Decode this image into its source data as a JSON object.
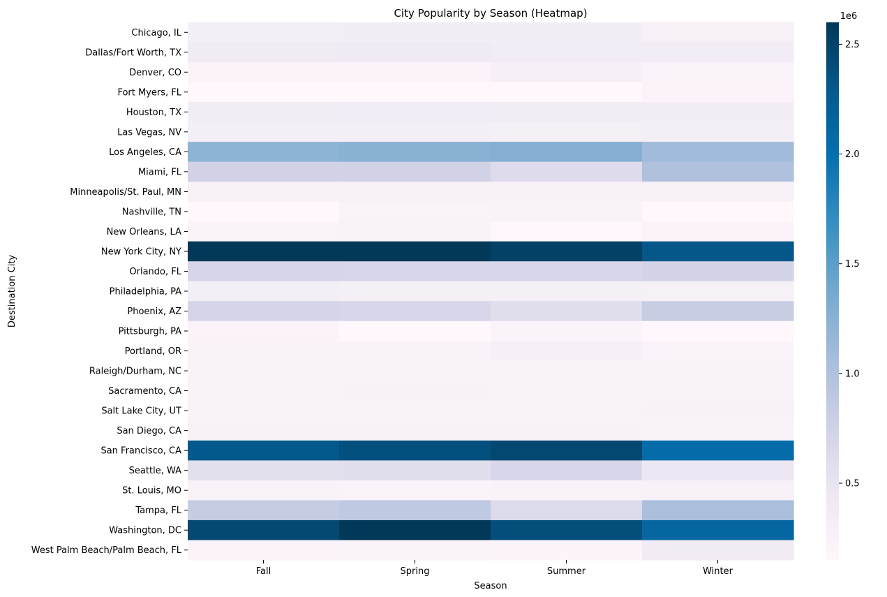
{
  "chart_data": {
    "type": "heatmap",
    "title": "City Popularity by Season (Heatmap)",
    "xlabel": "Season",
    "ylabel": "Destination City",
    "x_categories": [
      "Fall",
      "Spring",
      "Summer",
      "Winter"
    ],
    "y_categories": [
      "Chicago, IL",
      "Dallas/Fort Worth, TX",
      "Denver, CO",
      "Fort Myers, FL",
      "Houston, TX",
      "Las Vegas, NV",
      "Los Angeles, CA ",
      "Miami, FL ",
      "Minneapolis/St. Paul, MN",
      "Nashville, TN",
      "New Orleans, LA",
      "New York City, NY ",
      "Orlando, FL",
      "Philadelphia, PA",
      "Phoenix, AZ",
      "Pittsburgh, PA",
      "Portland, OR",
      "Raleigh/Durham, NC",
      "Sacramento, CA",
      "Salt Lake City, UT",
      "San Diego, CA",
      "San Francisco, CA ",
      "Seattle, WA",
      "St. Louis, MO",
      "Tampa, FL ",
      "Washington, DC ",
      "West Palm Beach/Palm Beach, FL"
    ],
    "values": [
      [
        330000,
        350000,
        340000,
        280000
      ],
      [
        380000,
        400000,
        370000,
        370000
      ],
      [
        220000,
        220000,
        300000,
        230000
      ],
      [
        140000,
        140000,
        140000,
        220000
      ],
      [
        360000,
        370000,
        360000,
        350000
      ],
      [
        320000,
        320000,
        310000,
        320000
      ],
      [
        1220000,
        1250000,
        1280000,
        1100000
      ],
      [
        750000,
        750000,
        620000,
        1000000
      ],
      [
        260000,
        260000,
        260000,
        260000
      ],
      [
        150000,
        230000,
        240000,
        140000
      ],
      [
        230000,
        240000,
        150000,
        220000
      ],
      [
        2600000,
        2600000,
        2520000,
        2320000
      ],
      [
        690000,
        680000,
        680000,
        720000
      ],
      [
        320000,
        310000,
        310000,
        290000
      ],
      [
        710000,
        680000,
        590000,
        820000
      ],
      [
        220000,
        150000,
        230000,
        140000
      ],
      [
        240000,
        240000,
        300000,
        230000
      ],
      [
        240000,
        250000,
        250000,
        240000
      ],
      [
        250000,
        270000,
        250000,
        250000
      ],
      [
        240000,
        240000,
        240000,
        270000
      ],
      [
        260000,
        260000,
        270000,
        240000
      ],
      [
        2300000,
        2380000,
        2460000,
        2050000
      ],
      [
        560000,
        580000,
        680000,
        460000
      ],
      [
        250000,
        230000,
        250000,
        260000
      ],
      [
        840000,
        890000,
        630000,
        1040000
      ],
      [
        2450000,
        2600000,
        2400000,
        2120000
      ],
      [
        220000,
        230000,
        200000,
        380000
      ]
    ],
    "colormap": "PuBu",
    "color_low": "#fff7fb",
    "color_high": "#023858",
    "colorbar": {
      "range": [
        150000,
        2600000
      ],
      "ticks": [
        0.5,
        1.0,
        1.5,
        2.0,
        2.5
      ],
      "tick_labels": [
        "0.5",
        "1.0",
        "1.5",
        "2.0",
        "2.5"
      ],
      "scale_label": "1e6"
    },
    "grid": false
  }
}
